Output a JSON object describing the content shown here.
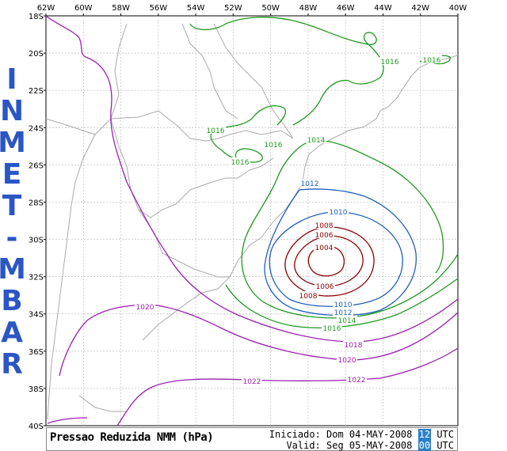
{
  "brand": {
    "text": "INMET - MBAR",
    "color": "#2b56c4"
  },
  "axes": {
    "lon_labels": [
      "62W",
      "60W",
      "58W",
      "56W",
      "54W",
      "52W",
      "50W",
      "48W",
      "46W",
      "44W",
      "42W",
      "40W"
    ],
    "lat_labels": [
      "18S",
      "20S",
      "22S",
      "24S",
      "26S",
      "28S",
      "30S",
      "32S",
      "34S",
      "36S",
      "38S",
      "40S"
    ],
    "lon_range": [
      -62,
      -40
    ],
    "lat_range": [
      -40,
      -18
    ]
  },
  "contours": {
    "labels": [
      "1004",
      "1006",
      "1008",
      "1008",
      "1006",
      "1010",
      "1010",
      "1012",
      "1012",
      "1014",
      "1014",
      "1016",
      "1016",
      "1016",
      "1016",
      "1016",
      "1016",
      "1018",
      "1020",
      "1020",
      "1022",
      "1022"
    ],
    "colors": {
      "1004": "#8b0000",
      "1006": "#8b0000",
      "1008": "#8b0000",
      "1010": "#1f5fbf",
      "1012": "#1f5fbf",
      "1014": "#1f9a1f",
      "1016": "#1f9a1f",
      "1018": "#9b1fb0",
      "1020": "#9b1fb0",
      "1022": "#9b1fb0"
    }
  },
  "footer": {
    "product": "Pressao Reduzida NMM (hPa)",
    "init_prefix": "Iniciado: Dom 04-MAY-2008",
    "init_hour": "12",
    "valid_prefix": "Valid: Seg 05-MAY-2008",
    "valid_hour": "00",
    "utc": "UTC"
  }
}
